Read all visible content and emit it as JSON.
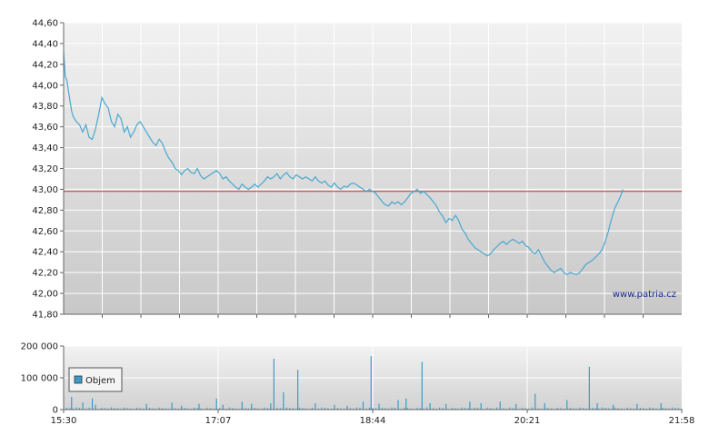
{
  "watermark": "www.patria.cz",
  "colors": {
    "line": "#4aa8d0",
    "reference": "#cc3333",
    "volume": "#3a9cc8"
  },
  "price_chart": {
    "type": "line",
    "ylim": [
      41.8,
      44.6
    ],
    "yticks": [
      "44,60",
      "44,40",
      "44,20",
      "44,00",
      "43,80",
      "43,60",
      "43,40",
      "43,20",
      "43,00",
      "42,80",
      "42,60",
      "42,40",
      "42,20",
      "42,00",
      "41,80"
    ],
    "reference_value": 42.98,
    "grid": true
  },
  "volume_chart": {
    "type": "bar",
    "ylim": [
      0,
      200000
    ],
    "yticks": [
      "200 000",
      "100 000",
      "0"
    ],
    "legend_label": "Objem",
    "legend_position": "bottom-left"
  },
  "xaxis": {
    "range_minutes": [
      0,
      388
    ],
    "ticks": [
      {
        "label": "15:30",
        "minute": 0
      },
      {
        "label": "17:07",
        "minute": 97
      },
      {
        "label": "18:44",
        "minute": 194
      },
      {
        "label": "20:21",
        "minute": 291
      },
      {
        "label": "21:58",
        "minute": 388
      }
    ]
  },
  "chart_data": [
    {
      "type": "line",
      "title": "",
      "xlabel": "",
      "ylabel": "",
      "ylim": [
        41.8,
        44.6
      ],
      "x_unit": "minutes after 15:30",
      "points": [
        [
          0,
          44.32
        ],
        [
          1,
          44.08
        ],
        [
          2,
          44.05
        ],
        [
          4,
          43.85
        ],
        [
          5,
          43.75
        ],
        [
          6,
          43.7
        ],
        [
          8,
          43.65
        ],
        [
          10,
          43.62
        ],
        [
          12,
          43.55
        ],
        [
          14,
          43.62
        ],
        [
          16,
          43.5
        ],
        [
          18,
          43.48
        ],
        [
          20,
          43.58
        ],
        [
          22,
          43.72
        ],
        [
          24,
          43.88
        ],
        [
          26,
          43.82
        ],
        [
          28,
          43.78
        ],
        [
          30,
          43.65
        ],
        [
          32,
          43.6
        ],
        [
          34,
          43.72
        ],
        [
          36,
          43.68
        ],
        [
          38,
          43.55
        ],
        [
          40,
          43.6
        ],
        [
          42,
          43.5
        ],
        [
          44,
          43.55
        ],
        [
          46,
          43.62
        ],
        [
          48,
          43.65
        ],
        [
          50,
          43.6
        ],
        [
          52,
          43.55
        ],
        [
          54,
          43.5
        ],
        [
          56,
          43.45
        ],
        [
          58,
          43.42
        ],
        [
          60,
          43.48
        ],
        [
          62,
          43.44
        ],
        [
          64,
          43.36
        ],
        [
          66,
          43.3
        ],
        [
          68,
          43.26
        ],
        [
          70,
          43.2
        ],
        [
          72,
          43.18
        ],
        [
          74,
          43.14
        ],
        [
          76,
          43.18
        ],
        [
          78,
          43.2
        ],
        [
          80,
          43.16
        ],
        [
          82,
          43.15
        ],
        [
          84,
          43.2
        ],
        [
          86,
          43.13
        ],
        [
          88,
          43.1
        ],
        [
          90,
          43.12
        ],
        [
          92,
          43.14
        ],
        [
          94,
          43.16
        ],
        [
          96,
          43.18
        ],
        [
          98,
          43.15
        ],
        [
          100,
          43.1
        ],
        [
          102,
          43.12
        ],
        [
          104,
          43.08
        ],
        [
          106,
          43.05
        ],
        [
          108,
          43.02
        ],
        [
          110,
          43.0
        ],
        [
          112,
          43.05
        ],
        [
          114,
          43.02
        ],
        [
          116,
          43.0
        ],
        [
          118,
          43.02
        ],
        [
          120,
          43.05
        ],
        [
          122,
          43.02
        ],
        [
          124,
          43.05
        ],
        [
          126,
          43.08
        ],
        [
          128,
          43.12
        ],
        [
          130,
          43.1
        ],
        [
          132,
          43.12
        ],
        [
          134,
          43.15
        ],
        [
          136,
          43.1
        ],
        [
          138,
          43.14
        ],
        [
          140,
          43.16
        ],
        [
          142,
          43.12
        ],
        [
          144,
          43.1
        ],
        [
          146,
          43.14
        ],
        [
          148,
          43.12
        ],
        [
          150,
          43.1
        ],
        [
          152,
          43.12
        ],
        [
          154,
          43.1
        ],
        [
          156,
          43.08
        ],
        [
          158,
          43.12
        ],
        [
          160,
          43.08
        ],
        [
          162,
          43.06
        ],
        [
          164,
          43.08
        ],
        [
          166,
          43.04
        ],
        [
          168,
          43.02
        ],
        [
          170,
          43.06
        ],
        [
          172,
          43.02
        ],
        [
          174,
          43.0
        ],
        [
          176,
          43.03
        ],
        [
          178,
          43.02
        ],
        [
          180,
          43.05
        ],
        [
          182,
          43.06
        ],
        [
          184,
          43.04
        ],
        [
          186,
          43.02
        ],
        [
          188,
          43.0
        ],
        [
          190,
          42.98
        ],
        [
          192,
          43.0
        ],
        [
          194,
          42.98
        ],
        [
          196,
          42.96
        ],
        [
          198,
          42.92
        ],
        [
          200,
          42.88
        ],
        [
          202,
          42.85
        ],
        [
          204,
          42.84
        ],
        [
          206,
          42.88
        ],
        [
          208,
          42.86
        ],
        [
          210,
          42.88
        ],
        [
          212,
          42.85
        ],
        [
          214,
          42.88
        ],
        [
          216,
          42.92
        ],
        [
          218,
          42.96
        ],
        [
          220,
          42.98
        ],
        [
          222,
          43.0
        ],
        [
          224,
          42.96
        ],
        [
          226,
          42.98
        ],
        [
          228,
          42.95
        ],
        [
          230,
          42.92
        ],
        [
          232,
          42.88
        ],
        [
          234,
          42.84
        ],
        [
          236,
          42.78
        ],
        [
          238,
          42.74
        ],
        [
          240,
          42.68
        ],
        [
          242,
          42.72
        ],
        [
          244,
          42.7
        ],
        [
          246,
          42.75
        ],
        [
          248,
          42.7
        ],
        [
          250,
          42.62
        ],
        [
          252,
          42.58
        ],
        [
          254,
          42.52
        ],
        [
          256,
          42.48
        ],
        [
          258,
          42.44
        ],
        [
          260,
          42.42
        ],
        [
          262,
          42.4
        ],
        [
          264,
          42.38
        ],
        [
          266,
          42.36
        ],
        [
          268,
          42.38
        ],
        [
          270,
          42.42
        ],
        [
          272,
          42.45
        ],
        [
          274,
          42.48
        ],
        [
          276,
          42.5
        ],
        [
          278,
          42.47
        ],
        [
          280,
          42.5
        ],
        [
          282,
          42.52
        ],
        [
          284,
          42.5
        ],
        [
          286,
          42.48
        ],
        [
          288,
          42.5
        ],
        [
          290,
          42.46
        ],
        [
          292,
          42.44
        ],
        [
          294,
          42.4
        ],
        [
          296,
          42.38
        ],
        [
          298,
          42.42
        ],
        [
          300,
          42.36
        ],
        [
          302,
          42.3
        ],
        [
          304,
          42.26
        ],
        [
          306,
          42.22
        ],
        [
          308,
          42.2
        ],
        [
          310,
          42.22
        ],
        [
          312,
          42.24
        ],
        [
          314,
          42.2
        ],
        [
          316,
          42.18
        ],
        [
          318,
          42.2
        ],
        [
          320,
          42.19
        ],
        [
          322,
          42.18
        ],
        [
          324,
          42.2
        ],
        [
          326,
          42.24
        ],
        [
          328,
          42.28
        ],
        [
          330,
          42.3
        ],
        [
          332,
          42.32
        ],
        [
          334,
          42.35
        ],
        [
          336,
          42.38
        ],
        [
          338,
          42.42
        ],
        [
          340,
          42.5
        ],
        [
          342,
          42.6
        ],
        [
          344,
          42.72
        ],
        [
          346,
          42.82
        ],
        [
          348,
          42.88
        ],
        [
          350,
          42.95
        ],
        [
          351,
          43.0
        ]
      ]
    },
    {
      "type": "bar",
      "title": "",
      "xlabel": "",
      "ylabel": "",
      "ylim": [
        0,
        200000
      ],
      "x_unit": "minutes after 15:30",
      "baseline": 5000,
      "spikes": [
        [
          5,
          40000
        ],
        [
          12,
          22000
        ],
        [
          18,
          35000
        ],
        [
          20,
          15000
        ],
        [
          52,
          18000
        ],
        [
          68,
          22000
        ],
        [
          74,
          12000
        ],
        [
          85,
          18000
        ],
        [
          96,
          35000
        ],
        [
          100,
          15000
        ],
        [
          112,
          25000
        ],
        [
          118,
          18000
        ],
        [
          130,
          20000
        ],
        [
          132,
          160000
        ],
        [
          138,
          55000
        ],
        [
          147,
          125000
        ],
        [
          158,
          20000
        ],
        [
          170,
          15000
        ],
        [
          178,
          12000
        ],
        [
          188,
          25000
        ],
        [
          193,
          168000
        ],
        [
          198,
          18000
        ],
        [
          210,
          30000
        ],
        [
          215,
          35000
        ],
        [
          225,
          150000
        ],
        [
          230,
          20000
        ],
        [
          240,
          18000
        ],
        [
          255,
          25000
        ],
        [
          262,
          20000
        ],
        [
          274,
          25000
        ],
        [
          284,
          18000
        ],
        [
          296,
          50000
        ],
        [
          302,
          20000
        ],
        [
          316,
          30000
        ],
        [
          330,
          135000
        ],
        [
          335,
          20000
        ],
        [
          345,
          15000
        ],
        [
          360,
          18000
        ],
        [
          375,
          20000
        ]
      ]
    }
  ]
}
